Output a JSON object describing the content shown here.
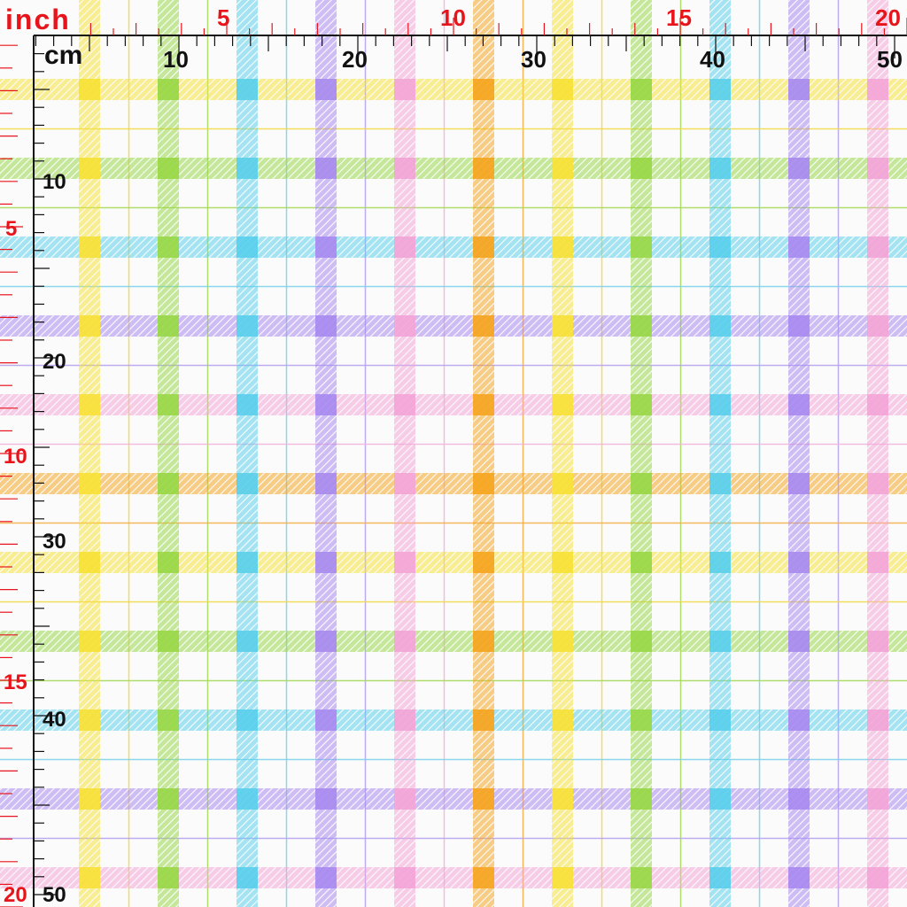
{
  "ruler": {
    "inch_label": "inch",
    "cm_label": "cm",
    "inch_numbers": [
      "5",
      "10",
      "15",
      "20"
    ],
    "cm_numbers": [
      "10",
      "20",
      "30",
      "40",
      "50"
    ],
    "inch_color": "#e8141b",
    "cm_color": "#111111"
  },
  "fabric": {
    "pattern": "pastel-plaid",
    "background": "#fbfbfb",
    "stripe_colors": [
      "#f7e23a",
      "#9ad84a",
      "#5cd0ec",
      "#a98cf0",
      "#f3a6d8",
      "#f5a623",
      "#f7e23a",
      "#9ad84a",
      "#5cd0ec",
      "#a98cf0",
      "#f3a6d8"
    ],
    "line_colors": [
      "#f2d94a",
      "#a7d95c",
      "#7fd3ea",
      "#b6a3f0",
      "#f1b7dc",
      "#f4b04a"
    ]
  }
}
